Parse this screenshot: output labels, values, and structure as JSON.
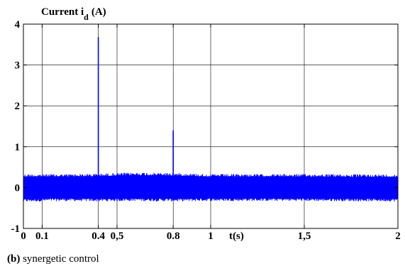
{
  "chart_data": {
    "type": "line",
    "title": "",
    "ylabel_main": "Current i",
    "ylabel_sub": "d",
    "ylabel_unit": "(A)",
    "xlabel": "t(s)",
    "xlim": [
      0,
      2
    ],
    "ylim": [
      -1,
      4
    ],
    "grid": true,
    "x_ticks": [
      {
        "value": 0,
        "label": "0"
      },
      {
        "value": 0.1,
        "label": "0.1"
      },
      {
        "value": 0.4,
        "label": "0.4"
      },
      {
        "value": 0.5,
        "label": "0,5"
      },
      {
        "value": 0.8,
        "label": "0.8"
      },
      {
        "value": 1,
        "label": "1"
      },
      {
        "value": 1.5,
        "label": "1,5"
      },
      {
        "value": 2,
        "label": "2"
      }
    ],
    "y_ticks": [
      {
        "value": -1,
        "label": "-1"
      },
      {
        "value": 0,
        "label": "0"
      },
      {
        "value": 1,
        "label": "1"
      },
      {
        "value": 2,
        "label": "2"
      },
      {
        "value": 3,
        "label": "3"
      },
      {
        "value": 4,
        "label": "4"
      }
    ],
    "series": [
      {
        "color": "#0000ff",
        "band": [
          {
            "x": 0.0,
            "low": -0.35,
            "high": 0.33
          },
          {
            "x": 0.2,
            "low": -0.33,
            "high": 0.33
          },
          {
            "x": 0.4,
            "low": -0.34,
            "high": 0.34
          },
          {
            "x": 0.6,
            "low": -0.33,
            "high": 0.37
          },
          {
            "x": 0.8,
            "low": -0.34,
            "high": 0.36
          },
          {
            "x": 1.0,
            "low": -0.33,
            "high": 0.33
          },
          {
            "x": 1.5,
            "low": -0.33,
            "high": 0.33
          },
          {
            "x": 2.0,
            "low": -0.34,
            "high": 0.32
          }
        ],
        "spikes": [
          {
            "x": 0.4,
            "y": 3.68
          },
          {
            "x": 0.8,
            "y": 1.4
          }
        ]
      }
    ]
  },
  "caption": {
    "bold": "(b)",
    "text": " synergetic control"
  }
}
